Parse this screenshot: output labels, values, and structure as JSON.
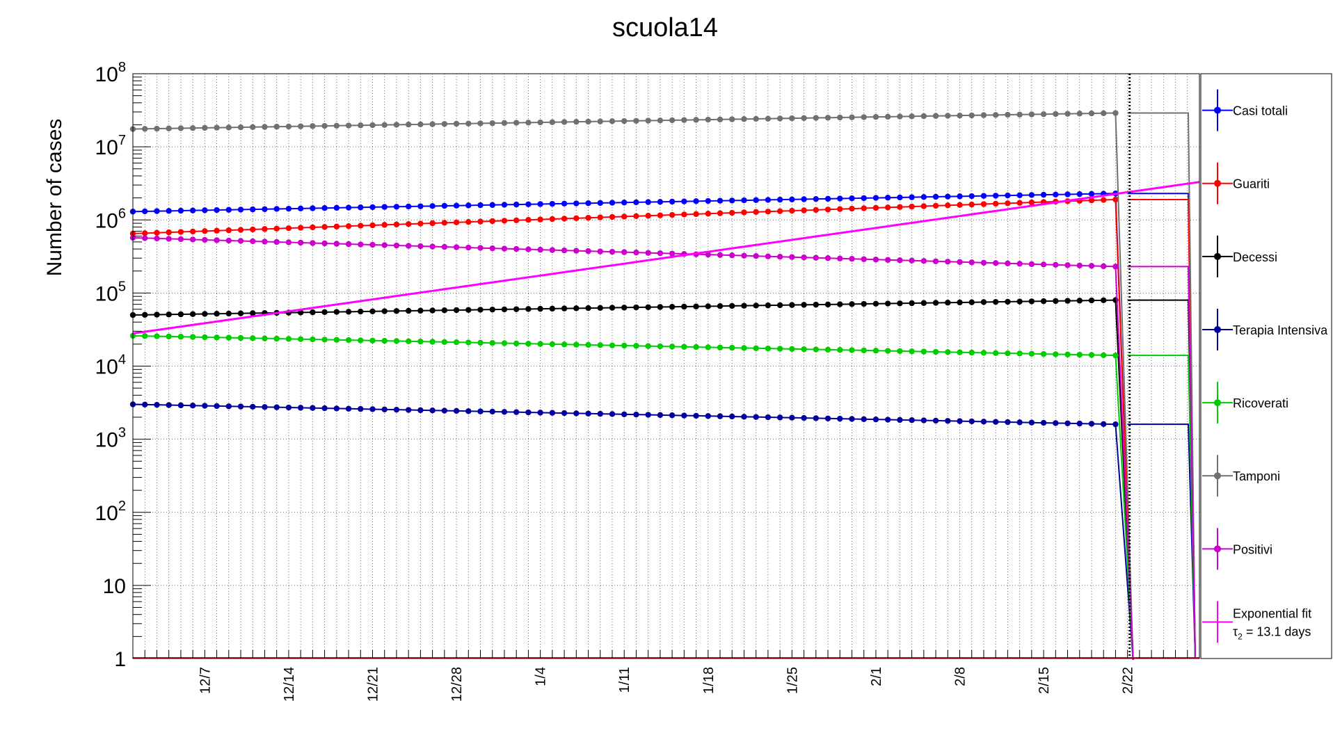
{
  "chart_data": {
    "type": "line",
    "title": "scuola14",
    "xlabel": "",
    "ylabel": "Number of cases",
    "y_scale": "log",
    "ylim": [
      1,
      100000000
    ],
    "xlim": [
      "2020-12-01",
      "2021-02-28"
    ],
    "grid": true,
    "legend_position": "right",
    "x_tick_labels": [
      "12/7",
      "12/14",
      "12/21",
      "12/28",
      "1/4",
      "1/11",
      "1/18",
      "1/25",
      "2/1",
      "2/8",
      "2/15",
      "2/22"
    ],
    "x_tick_dates": [
      "2020-12-07",
      "2020-12-14",
      "2020-12-21",
      "2020-12-28",
      "2021-01-04",
      "2021-01-11",
      "2021-01-18",
      "2021-01-25",
      "2021-02-01",
      "2021-02-08",
      "2021-02-15",
      "2021-02-22"
    ],
    "y_tick_labels": [
      {
        "value": 1,
        "base": "1",
        "exp": ""
      },
      {
        "value": 10,
        "base": "10",
        "exp": ""
      },
      {
        "value": 100,
        "base": "10",
        "exp": "2"
      },
      {
        "value": 1000,
        "base": "10",
        "exp": "3"
      },
      {
        "value": 10000,
        "base": "10",
        "exp": "4"
      },
      {
        "value": 100000,
        "base": "10",
        "exp": "5"
      },
      {
        "value": 1000000,
        "base": "10",
        "exp": "6"
      },
      {
        "value": 10000000,
        "base": "10",
        "exp": "7"
      },
      {
        "value": 100000000,
        "base": "10",
        "exp": "8"
      }
    ],
    "series": [
      {
        "name": "Casi totali",
        "color": "#0000ff",
        "first_date": "2020-12-01",
        "last_date": "2021-02-21",
        "start": 1300000,
        "end": 2300000
      },
      {
        "name": "Guariti",
        "color": "#ff0000",
        "first_date": "2020-12-01",
        "last_date": "2021-02-21",
        "start": 650000,
        "end": 1900000
      },
      {
        "name": "Decessi",
        "color": "#000000",
        "first_date": "2020-12-01",
        "last_date": "2021-02-21",
        "start": 50000,
        "end": 80000
      },
      {
        "name": "Terapia Intensiva",
        "color": "#00009c",
        "first_date": "2020-12-01",
        "last_date": "2021-02-21",
        "start": 3000,
        "end": 1600
      },
      {
        "name": "Ricoverati",
        "color": "#00cc00",
        "first_date": "2020-12-01",
        "last_date": "2021-02-21",
        "start": 26000,
        "end": 14000
      },
      {
        "name": "Tamponi",
        "color": "#707070",
        "first_date": "2020-12-01",
        "last_date": "2021-02-21",
        "start": 17500000,
        "end": 29000000
      },
      {
        "name": "Positivi",
        "color": "#cc00cc",
        "first_date": "2020-12-01",
        "last_date": "2021-02-21",
        "start": 570000,
        "end": 230000
      }
    ],
    "fit": {
      "name": "Exponential fit",
      "label_tau": "τ",
      "label_sub": "2",
      "label_rest": " = 13.1 days",
      "color": "#ff00ff",
      "first_date": "2020-12-01",
      "last_date": "2021-02-28",
      "start": 28000,
      "end": 3300000
    },
    "vertical_lines": [
      {
        "date": "2021-02-22",
        "style": "dotted",
        "color": "#000000"
      }
    ]
  }
}
